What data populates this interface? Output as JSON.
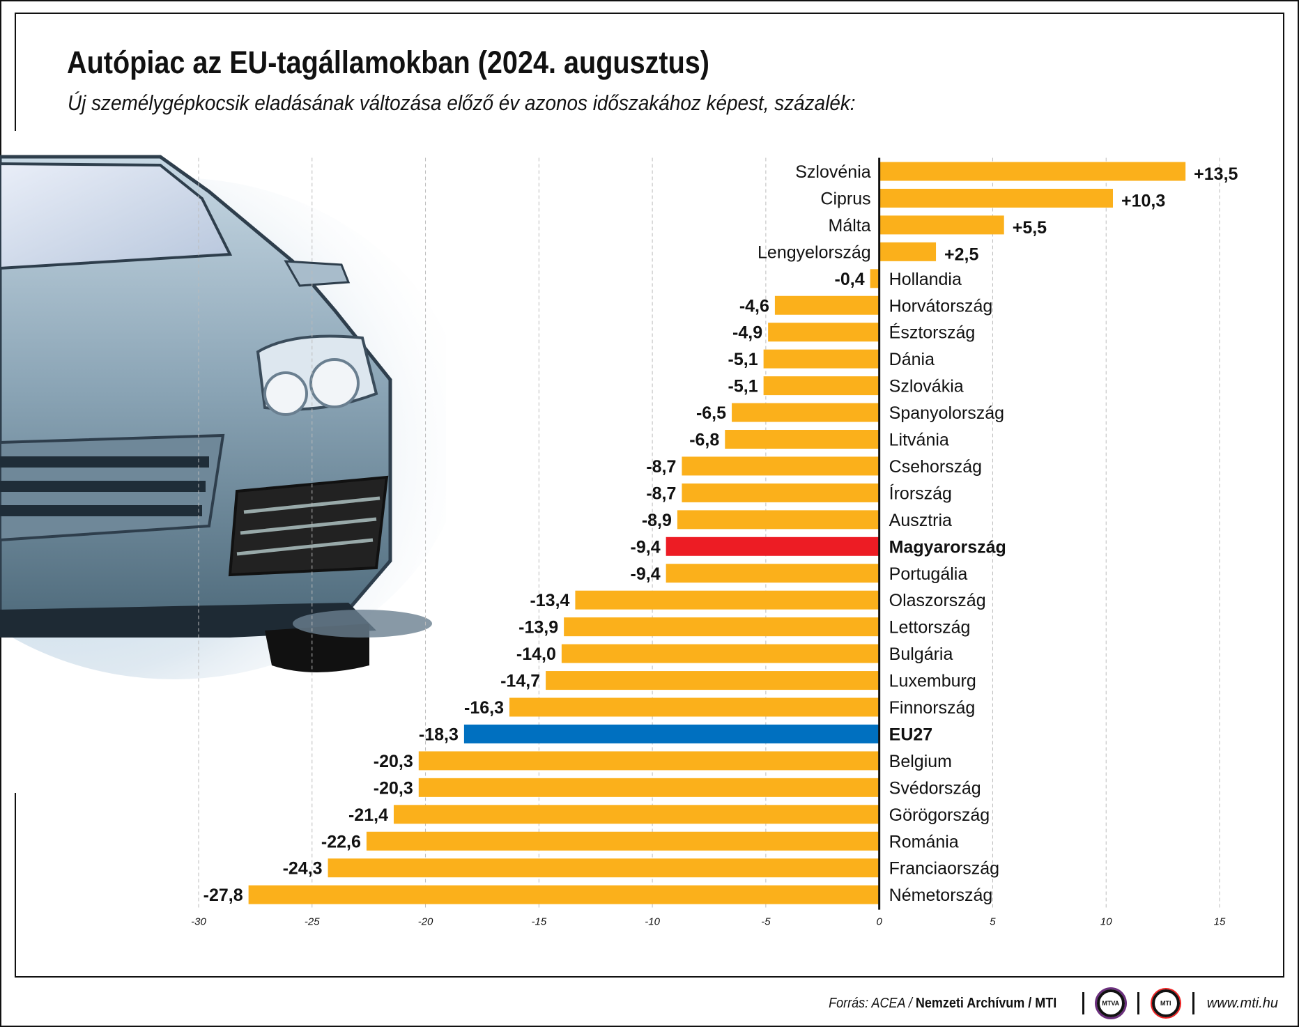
{
  "header": {
    "title": "Autópiac az EU-tagállamokban (2024. augusztus)",
    "subtitle": "Új személygépkocsik eladásának változása előző év azonos időszakához képest, százalék:"
  },
  "footer": {
    "source_prefix": "Forrás: ACEA / ",
    "source_bold": "Nemzeti Archívum / MTI",
    "logo1": "MTVA",
    "logo2": "MTI",
    "url": "www.mti.hu"
  },
  "colors": {
    "default": "#fbb01b",
    "hungary": "#ed1c24",
    "eu27": "#0070c0"
  },
  "chart_data": {
    "type": "bar",
    "orientation": "horizontal",
    "xlim": [
      -30,
      15
    ],
    "grid": true,
    "x_ticks": [
      "-30",
      "-25",
      "-20",
      "-15",
      "-10",
      "-5",
      "0",
      "5",
      "10",
      "15"
    ],
    "categories": [
      "Szlovénia",
      "Ciprus",
      "Málta",
      "Lengyelország",
      "Hollandia",
      "Horvátország",
      "Észtország",
      "Dánia",
      "Szlovákia",
      "Spanyolország",
      "Litvánia",
      "Csehország",
      "Írország",
      "Ausztria",
      "Magyarország",
      "Portugália",
      "Olaszország",
      "Lettország",
      "Bulgária",
      "Luxemburg",
      "Finnország",
      "EU27",
      "Belgium",
      "Svédország",
      "Görögország",
      "Románia",
      "Franciaország",
      "Németország"
    ],
    "values": [
      13.5,
      10.3,
      5.5,
      2.5,
      -0.4,
      -4.6,
      -4.9,
      -5.1,
      -5.1,
      -6.5,
      -6.8,
      -8.7,
      -8.7,
      -8.9,
      -9.4,
      -9.4,
      -13.4,
      -13.9,
      -14.0,
      -14.7,
      -16.3,
      -18.3,
      -20.3,
      -20.3,
      -21.4,
      -22.6,
      -24.3,
      -27.8
    ],
    "data_labels": [
      "+13,5",
      "+10,3",
      "+5,5",
      "+2,5",
      "-0,4",
      "-4,6",
      "-4,9",
      "-5,1",
      "-5,1",
      "-6,5",
      "-6,8",
      "-8,7",
      "-8,7",
      "-8,9",
      "-9,4",
      "-9,4",
      "-13,4",
      "-13,9",
      "-14,0",
      "-14,7",
      "-16,3",
      "-18,3",
      "-20,3",
      "-20,3",
      "-21,4",
      "-22,6",
      "-24,3",
      "-27,8"
    ],
    "highlight": {
      "Magyarország": "hungary",
      "EU27": "eu27"
    }
  }
}
